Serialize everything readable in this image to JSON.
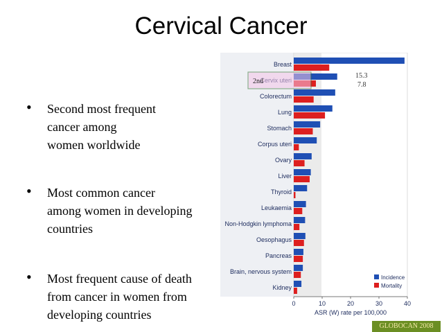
{
  "title": "Cervical Cancer",
  "bullets": [
    {
      "lines": [
        "Second most frequent",
        "cancer among",
        "women worldwide"
      ]
    },
    {
      "lines": [
        "Most common cancer",
        "among women in developing",
        "countries"
      ]
    },
    {
      "lines": [
        "Most frequent cause of death",
        "from cancer in women from",
        "developing countries"
      ]
    }
  ],
  "source_badge": "GLOBOCAN 2008",
  "chart_data": {
    "type": "bar",
    "orientation": "horizontal",
    "categories": [
      "Breast",
      "Cervix uteri",
      "Colorectum",
      "Lung",
      "Stomach",
      "Corpus uteri",
      "Ovary",
      "Liver",
      "Thyroid",
      "Leukaemia",
      "Non-Hodgkin lymphoma",
      "Oesophagus",
      "Pancreas",
      "Brain, nervous system",
      "Kidney"
    ],
    "series": [
      {
        "name": "Incidence",
        "color": "#1f4fb4",
        "values": [
          39,
          15.3,
          14.6,
          13.6,
          9.3,
          8.1,
          6.3,
          6.0,
          4.7,
          4.3,
          4.0,
          4.1,
          3.4,
          3.2,
          2.7
        ]
      },
      {
        "name": "Mortality",
        "color": "#dd1f1f",
        "values": [
          12.5,
          7.8,
          7.0,
          11.0,
          6.7,
          1.8,
          3.8,
          5.6,
          0.6,
          3.0,
          2.0,
          3.6,
          3.2,
          2.5,
          1.2
        ]
      }
    ],
    "xlim": [
      0,
      40
    ],
    "xticks": [
      0,
      10,
      20,
      30,
      40
    ],
    "xlabel": "ASR (W) rate per 100,000",
    "legend": "bottom-right",
    "highlight": {
      "category": "Cervix uteri",
      "rank_label": "2nd",
      "annotation_values": [
        "15.3",
        "7.8"
      ]
    }
  }
}
